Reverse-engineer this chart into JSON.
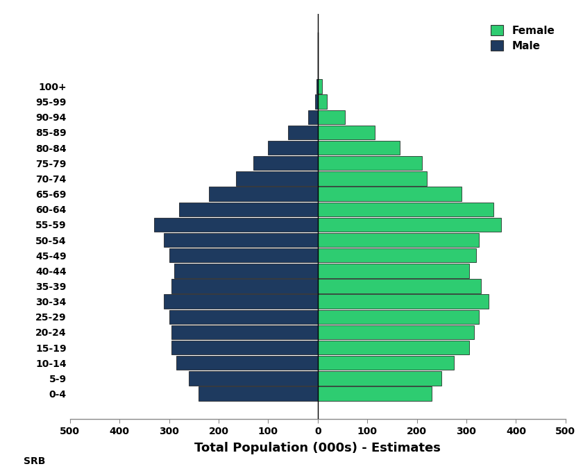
{
  "age_groups": [
    "0-4",
    "5-9",
    "10-14",
    "15-19",
    "20-24",
    "25-29",
    "30-34",
    "35-39",
    "40-44",
    "45-49",
    "50-54",
    "55-59",
    "60-64",
    "65-69",
    "70-74",
    "75-79",
    "80-84",
    "85-89",
    "90-94",
    "95-99",
    "100+"
  ],
  "male": [
    240,
    260,
    285,
    295,
    295,
    300,
    310,
    295,
    290,
    300,
    310,
    330,
    280,
    220,
    165,
    130,
    100,
    60,
    20,
    5,
    2
  ],
  "female": [
    230,
    250,
    275,
    305,
    315,
    325,
    345,
    330,
    305,
    320,
    325,
    370,
    355,
    290,
    220,
    210,
    165,
    115,
    55,
    18,
    8
  ],
  "male_color": "#1e3a5f",
  "female_color": "#2ecc71",
  "bar_edge_color": "#111111",
  "xlim": [
    -500,
    500
  ],
  "xticks": [
    -500,
    -400,
    -300,
    -200,
    -100,
    0,
    100,
    200,
    300,
    400,
    500
  ],
  "xticklabels": [
    "500",
    "400",
    "300",
    "200",
    "100",
    "0",
    "100",
    "200",
    "300",
    "400",
    "500"
  ],
  "xlabel": "Total Population (000s) - Estimates",
  "xlabel_fontsize": 13,
  "tick_fontsize": 10,
  "legend_female": "Female",
  "legend_male": "Male",
  "srb_label": "SRB"
}
